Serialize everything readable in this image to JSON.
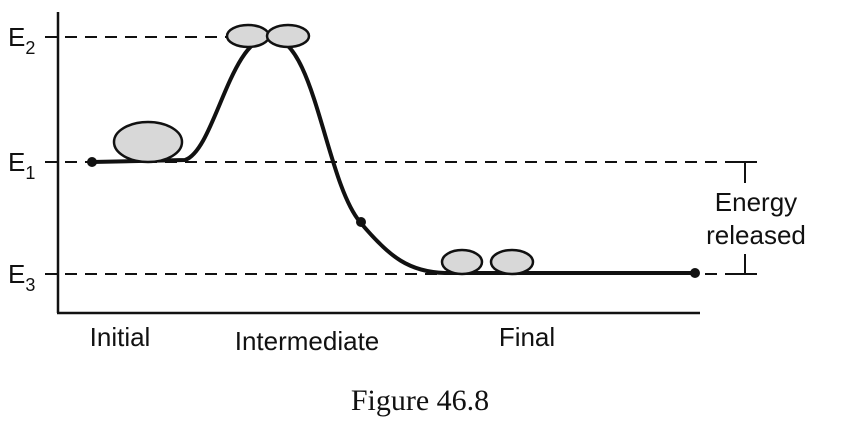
{
  "levels": [
    {
      "symbol": "E",
      "subscript": "2"
    },
    {
      "symbol": "E",
      "subscript": "1"
    },
    {
      "symbol": "E",
      "subscript": "3"
    }
  ],
  "annotation": [
    "Energy",
    "released"
  ],
  "stages": [
    "Initial",
    "Intermediate",
    "Final"
  ],
  "caption": "Figure 46.8"
}
